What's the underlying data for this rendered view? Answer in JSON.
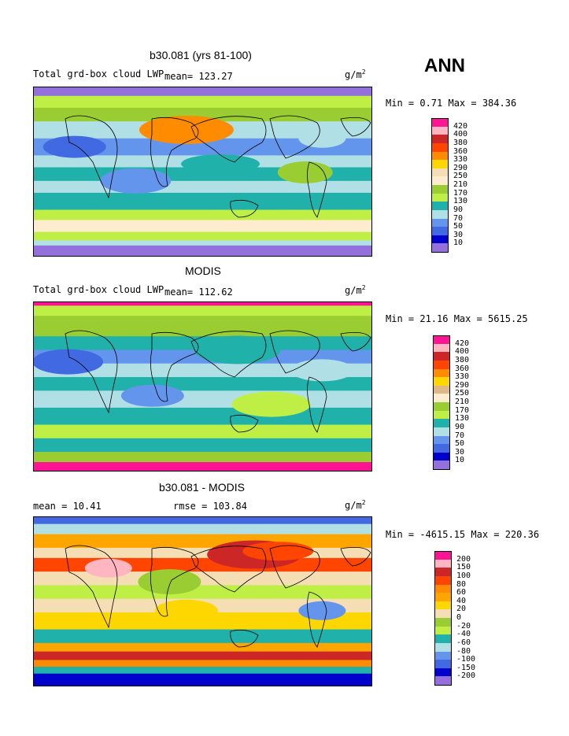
{
  "season": "ANN",
  "panels": [
    {
      "id": "model",
      "title": "b30.081 (yrs 81-100)",
      "variable": "Total grd-box cloud LWP",
      "left_stat": "",
      "mean_text": "mean= 123.27",
      "units": "g/m",
      "units_sup": "2",
      "minmax": "Min =   0.71 Max = 384.36",
      "levels": [
        "420",
        "400",
        "380",
        "360",
        "330",
        "290",
        "250",
        "210",
        "170",
        "130",
        "90",
        "70",
        "50",
        "30",
        "10"
      ],
      "colors": [
        "#ff1493",
        "#ffb6c1",
        "#cd2626",
        "#ff4500",
        "#ff8c00",
        "#ffd700",
        "#f5deb3",
        "#ffebcd",
        "#9acd32",
        "#bfef45",
        "#20b2aa",
        "#b0e0e6",
        "#6495ed",
        "#4169e1",
        "#0000cd",
        "#9370db"
      ]
    },
    {
      "id": "obs",
      "title": "MODIS",
      "variable": "Total grd-box cloud LWP",
      "left_stat": "",
      "mean_text": "mean= 112.62",
      "units": "g/m",
      "units_sup": "2",
      "minmax": "Min =  21.16 Max = 5615.25",
      "levels": [
        "420",
        "400",
        "380",
        "360",
        "330",
        "290",
        "250",
        "210",
        "170",
        "130",
        "90",
        "70",
        "50",
        "30",
        "10"
      ],
      "colors": [
        "#ff1493",
        "#ffb6c1",
        "#cd2626",
        "#ff4500",
        "#ff8c00",
        "#ffd700",
        "#deb887",
        "#ffebcd",
        "#9acd32",
        "#bfef45",
        "#20b2aa",
        "#b0e0e6",
        "#6495ed",
        "#4169e1",
        "#0000cd",
        "#9370db"
      ]
    },
    {
      "id": "diff",
      "title": "b30.081 - MODIS",
      "variable": "",
      "left_stat": "mean =   10.41",
      "mean_text": "rmse = 103.84",
      "units": "g/m",
      "units_sup": "2",
      "minmax": "Min = -4615.15 Max = 220.36",
      "levels": [
        "200",
        "150",
        "100",
        "80",
        "60",
        "40",
        "20",
        "0",
        "-20",
        "-40",
        "-60",
        "-80",
        "-100",
        "-150",
        "-200"
      ],
      "colors": [
        "#ff1493",
        "#ffb6c1",
        "#cd2626",
        "#ff4500",
        "#ff8c00",
        "#ffa500",
        "#ffd700",
        "#f5deb3",
        "#9acd32",
        "#bfef45",
        "#20b2aa",
        "#b0e0e6",
        "#6495ed",
        "#4169e1",
        "#0000cd",
        "#9370db"
      ]
    }
  ],
  "chart_data": [
    {
      "type": "heatmap",
      "title": "b30.081 (yrs 81-100)",
      "subtitle": "Total grd-box cloud LWP",
      "mean": 123.27,
      "units": "g/m2",
      "min": 0.71,
      "max": 384.36,
      "contour_levels": [
        10,
        30,
        50,
        70,
        90,
        130,
        170,
        210,
        250,
        290,
        330,
        360,
        380,
        400,
        420
      ]
    },
    {
      "type": "heatmap",
      "title": "MODIS",
      "subtitle": "Total grd-box cloud LWP",
      "mean": 112.62,
      "units": "g/m2",
      "min": 21.16,
      "max": 5615.25,
      "contour_levels": [
        10,
        30,
        50,
        70,
        90,
        130,
        170,
        210,
        250,
        290,
        330,
        360,
        380,
        400,
        420
      ]
    },
    {
      "type": "heatmap",
      "title": "b30.081 - MODIS",
      "mean": 10.41,
      "rmse": 103.84,
      "units": "g/m2",
      "min": -4615.15,
      "max": 220.36,
      "contour_levels": [
        -200,
        -150,
        -100,
        -80,
        -60,
        -40,
        -20,
        0,
        20,
        40,
        60,
        80,
        100,
        150,
        200
      ]
    }
  ]
}
